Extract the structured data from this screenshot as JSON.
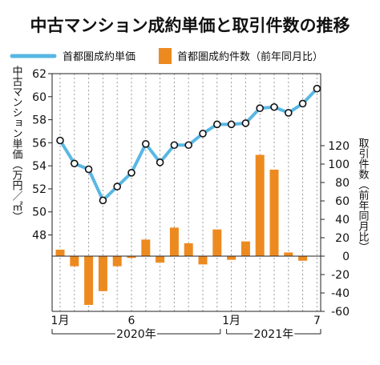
{
  "chart_data": {
    "type": "bar+line",
    "title": "中古マンション成約単価と取引件数の推移",
    "legend": {
      "line_label": "首都圏成約単価",
      "bar_label": "首都圏成約件数（前年同月比）",
      "placement": "top"
    },
    "colors": {
      "line": "#59b7e3",
      "bar": "#ed8a1f",
      "marker_fill": "#ffffff",
      "marker_stroke": "#111111"
    },
    "months": [
      "2020-01",
      "2020-02",
      "2020-03",
      "2020-04",
      "2020-05",
      "2020-06",
      "2020-07",
      "2020-08",
      "2020-09",
      "2020-10",
      "2020-11",
      "2020-12",
      "2021-01",
      "2021-02",
      "2021-03",
      "2021-04",
      "2021-05",
      "2021-06",
      "2021-07"
    ],
    "x_ticks": [
      {
        "index": 0,
        "label": "1月"
      },
      {
        "index": 5,
        "label": "6"
      },
      {
        "index": 12,
        "label": "1月"
      },
      {
        "index": 18,
        "label": "7"
      }
    ],
    "year_labels": [
      {
        "label": "2020年",
        "start": 0,
        "end": 11
      },
      {
        "label": "2021年",
        "start": 12,
        "end": 18
      }
    ],
    "left_axis": {
      "label": "中古マンション単価（万円／㎡）",
      "range": [
        46.3,
        62
      ],
      "ticks": [
        48,
        50,
        52,
        54,
        56,
        58,
        60,
        62
      ]
    },
    "right_axis": {
      "label": "取引件数（前年同月比）",
      "range": [
        -60,
        120
      ],
      "ticks": [
        120,
        100,
        80,
        60,
        40,
        20,
        0,
        -20,
        -40,
        -60
      ]
    },
    "series": [
      {
        "name": "首都圏成約単価",
        "kind": "line",
        "axis": "left",
        "values": [
          56.2,
          54.2,
          53.7,
          51.0,
          52.2,
          53.4,
          55.9,
          54.3,
          55.8,
          55.8,
          56.8,
          57.6,
          57.6,
          57.7,
          59.0,
          59.1,
          58.6,
          59.4,
          60.7
        ]
      },
      {
        "name": "首都圏成約件数（前年同月比）",
        "kind": "bar",
        "axis": "right",
        "values": [
          7,
          -11,
          -53,
          -38,
          -11,
          -2,
          18,
          -7,
          31,
          14,
          -9,
          29,
          -4,
          16,
          110,
          94,
          4,
          -5,
          0
        ]
      }
    ]
  }
}
